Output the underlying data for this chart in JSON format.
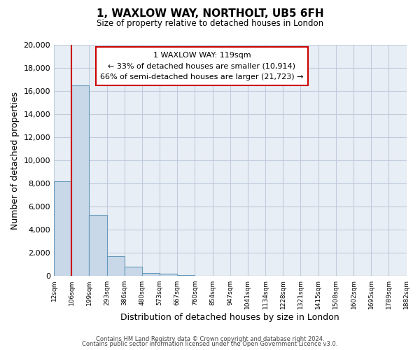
{
  "title": "1, WAXLOW WAY, NORTHOLT, UB5 6FH",
  "subtitle": "Size of property relative to detached houses in London",
  "xlabel": "Distribution of detached houses by size in London",
  "ylabel": "Number of detached properties",
  "bar_values": [
    8200,
    16500,
    5300,
    1750,
    800,
    280,
    180,
    100,
    0,
    0,
    0,
    0,
    0,
    0,
    0,
    0,
    0,
    0,
    0,
    0
  ],
  "tick_labels": [
    "12sqm",
    "106sqm",
    "199sqm",
    "293sqm",
    "386sqm",
    "480sqm",
    "573sqm",
    "667sqm",
    "760sqm",
    "854sqm",
    "947sqm",
    "1041sqm",
    "1134sqm",
    "1228sqm",
    "1321sqm",
    "1415sqm",
    "1508sqm",
    "1602sqm",
    "1695sqm",
    "1789sqm",
    "1882sqm"
  ],
  "bar_color": "#c8d8e8",
  "bar_edge_color": "#6699bb",
  "red_line_x": 1.0,
  "ylim": [
    0,
    20000
  ],
  "yticks": [
    0,
    2000,
    4000,
    6000,
    8000,
    10000,
    12000,
    14000,
    16000,
    18000,
    20000
  ],
  "annotation_title": "1 WAXLOW WAY: 119sqm",
  "annotation_line1": "← 33% of detached houses are smaller (10,914)",
  "annotation_line2": "66% of semi-detached houses are larger (21,723) →",
  "annotation_box_color": "#ffffff",
  "annotation_box_edge": "#cc0000",
  "grid_color": "#c0ccdd",
  "bg_color": "#e8eef5",
  "footer1": "Contains HM Land Registry data © Crown copyright and database right 2024.",
  "footer2": "Contains public sector information licensed under the Open Government Licence v3.0."
}
